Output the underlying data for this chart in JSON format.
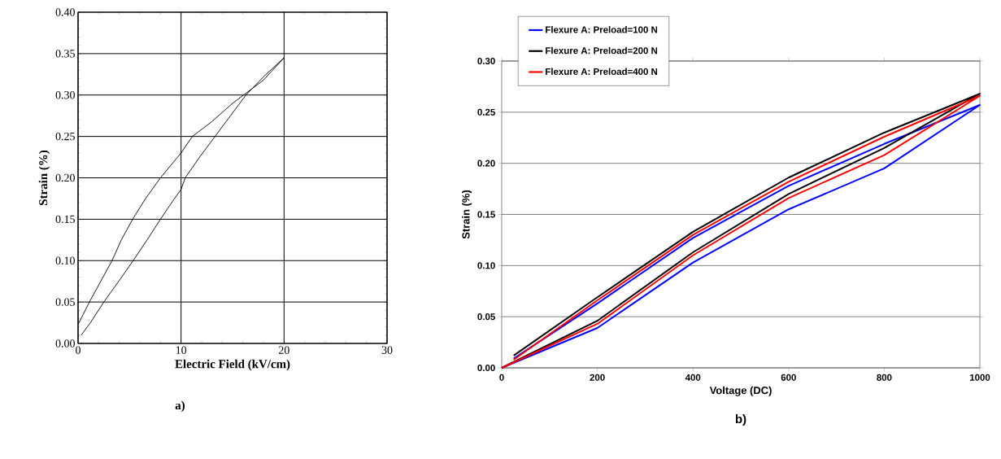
{
  "chart_data": [
    {
      "type": "line",
      "xlabel": "Electric Field (kV/cm)",
      "ylabel": "Strain (%)",
      "xlim": [
        0,
        30
      ],
      "ylim": [
        0,
        0.4
      ],
      "xticks": [
        0,
        10,
        20,
        30
      ],
      "yticks": [
        {
          "value": 0,
          "label": "0.00"
        },
        {
          "value": 0.05,
          "label": "0.05"
        },
        {
          "value": 0.1,
          "label": "0.10"
        },
        {
          "value": 0.15,
          "label": "0.15"
        },
        {
          "value": 0.2,
          "label": "0.20"
        },
        {
          "value": 0.25,
          "label": "0.25"
        },
        {
          "value": 0.3,
          "label": "0.30"
        },
        {
          "value": 0.35,
          "label": "0.35"
        },
        {
          "value": 0.4,
          "label": "0.40"
        }
      ],
      "grid": true,
      "marker": "none",
      "line_style": "solid",
      "annotations": [
        "a)"
      ],
      "series": [
        {
          "color": "#000000",
          "x": [
            0.3,
            1.2,
            2.5,
            4.0,
            5.35,
            6.7,
            8.0,
            9.2,
            10.0,
            10.4,
            11.8,
            13.3,
            14.8,
            16.3,
            18.0,
            20.0,
            18.0,
            15.0,
            13.0,
            11.1,
            10.0,
            8.0,
            6.5,
            5.3,
            4.2,
            3.3,
            2.2,
            1.1,
            0.5,
            0.0
          ],
          "values": [
            0.01,
            0.025,
            0.05,
            0.076,
            0.1,
            0.125,
            0.15,
            0.172,
            0.186,
            0.2,
            0.225,
            0.25,
            0.275,
            0.3,
            0.322,
            0.345,
            0.318,
            0.29,
            0.268,
            0.25,
            0.23,
            0.2,
            0.174,
            0.15,
            0.125,
            0.1,
            0.075,
            0.05,
            0.035,
            0.023
          ]
        }
      ]
    },
    {
      "type": "line",
      "xlabel": "Voltage (DC)",
      "ylabel": "Strain (%)",
      "xlim": [
        0,
        1000
      ],
      "ylim": [
        0,
        0.3
      ],
      "xticks": [
        0,
        200,
        400,
        600,
        800,
        1000
      ],
      "yticks": [
        {
          "value": 0,
          "label": "0.00"
        },
        {
          "value": 0.05,
          "label": "0.05"
        },
        {
          "value": 0.1,
          "label": "0.10"
        },
        {
          "value": 0.15,
          "label": "0.15"
        },
        {
          "value": 0.2,
          "label": "0.20"
        },
        {
          "value": 0.25,
          "label": "0.25"
        },
        {
          "value": 0.3,
          "label": "0.30"
        }
      ],
      "grid": "y",
      "legend": "top left",
      "marker": "none",
      "line_style": "solid",
      "annotations": [
        "b)"
      ],
      "series": [
        {
          "name": "Flexure A: Preload=100 N",
          "color": "#0000ff",
          "x": [
            25,
            200,
            400,
            600,
            800,
            1000,
            800,
            600,
            400,
            200,
            0
          ],
          "values": [
            0.009,
            0.063,
            0.127,
            0.178,
            0.219,
            0.257,
            0.195,
            0.155,
            0.103,
            0.039,
            0
          ]
        },
        {
          "name": "Flexure A: Preload=200 N",
          "color": "#000000",
          "x": [
            25,
            200,
            400,
            600,
            800,
            1000,
            800,
            600,
            400,
            200,
            0
          ],
          "values": [
            0.012,
            0.069,
            0.133,
            0.186,
            0.23,
            0.268,
            0.215,
            0.17,
            0.113,
            0.046,
            0
          ]
        },
        {
          "name": "Flexure A: Preload=400 N",
          "color": "#ff0000",
          "x": [
            25,
            200,
            400,
            600,
            800,
            1000,
            800,
            600,
            400,
            200,
            0
          ],
          "values": [
            0.008,
            0.066,
            0.13,
            0.182,
            0.226,
            0.266,
            0.208,
            0.166,
            0.11,
            0.043,
            0
          ]
        }
      ]
    }
  ]
}
